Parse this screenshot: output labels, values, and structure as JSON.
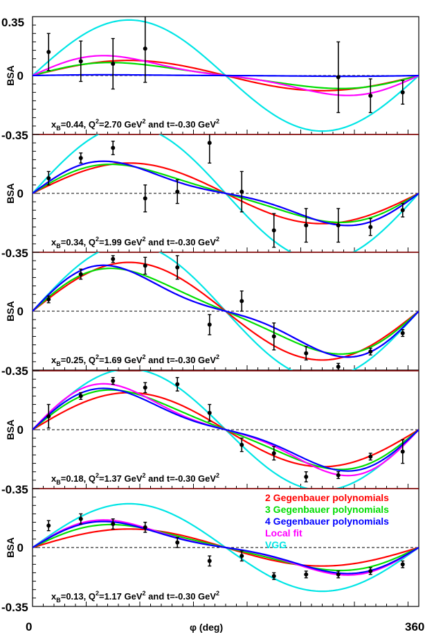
{
  "chart_data": {
    "type": "scatter",
    "x_axis": {
      "label": "φ (deg)",
      "range": [
        0,
        360
      ],
      "tick_labels": [
        "0",
        "360"
      ]
    },
    "y_axis": {
      "label": "BSA",
      "range": [
        -0.35,
        0.35
      ],
      "tick_labels": [
        "0.35",
        "0",
        "-0.35"
      ]
    },
    "legend": {
      "placement": "bottom-panel top-right",
      "entries": [
        {
          "key": "g2",
          "label": "2 Gegenbauer polynomials",
          "color": "#ff0000"
        },
        {
          "key": "g3",
          "label": "3 Gegenbauer polynomials",
          "color": "#00dd00"
        },
        {
          "key": "g4",
          "label": "4 Gegenbauer polynomials",
          "color": "#0000ff"
        },
        {
          "key": "local",
          "label": "Local fit",
          "color": "#ff00ff"
        },
        {
          "key": "vgg",
          "label": "VGG",
          "color": "#00e5e5"
        }
      ]
    },
    "panels": [
      {
        "kin": {
          "xb": "0.44",
          "q2": "2.70",
          "t": "-0.30"
        },
        "amplitudes": {
          "g2": 0.09,
          "g3": 0.085,
          "g4": 0.005,
          "local": 0.13,
          "vgg": 0.33
        },
        "points": [
          {
            "x": 15,
            "y": 0.14,
            "err": 0.11
          },
          {
            "x": 45,
            "y": 0.085,
            "err": 0.12
          },
          {
            "x": 75,
            "y": 0.07,
            "err": 0.15
          },
          {
            "x": 105,
            "y": 0.16,
            "err": 0.2
          },
          {
            "x": 285,
            "y": -0.01,
            "err": 0.21
          },
          {
            "x": 315,
            "y": -0.12,
            "err": 0.1
          },
          {
            "x": 345,
            "y": -0.1,
            "err": 0.07
          }
        ]
      },
      {
        "kin": {
          "xb": "0.34",
          "q2": "1.99",
          "t": "-0.30"
        },
        "amplitudes": {
          "g2": 0.18,
          "g3": 0.19,
          "g4": 0.21,
          "local": 0.21,
          "vgg": 0.4
        },
        "points": [
          {
            "x": 15,
            "y": 0.09,
            "err": 0.04
          },
          {
            "x": 45,
            "y": 0.21,
            "err": 0.03
          },
          {
            "x": 75,
            "y": 0.27,
            "err": 0.04
          },
          {
            "x": 105,
            "y": -0.03,
            "err": 0.08
          },
          {
            "x": 135,
            "y": 0.01,
            "err": 0.07
          },
          {
            "x": 165,
            "y": 0.3,
            "err": 0.12
          },
          {
            "x": 195,
            "y": 0.01,
            "err": 0.12
          },
          {
            "x": 225,
            "y": -0.22,
            "err": 0.1
          },
          {
            "x": 255,
            "y": -0.19,
            "err": 0.1
          },
          {
            "x": 285,
            "y": -0.19,
            "err": 0.1
          },
          {
            "x": 315,
            "y": -0.2,
            "err": 0.05
          },
          {
            "x": 345,
            "y": -0.1,
            "err": 0.04
          }
        ]
      },
      {
        "kin": {
          "xb": "0.25",
          "q2": "1.69",
          "t": "-0.30"
        },
        "amplitudes": {
          "g2": 0.29,
          "g3": 0.28,
          "g4": 0.3,
          "local": 0.3,
          "vgg": 0.4
        },
        "points": [
          {
            "x": 15,
            "y": 0.07,
            "err": 0.02
          },
          {
            "x": 45,
            "y": 0.22,
            "err": 0.03
          },
          {
            "x": 75,
            "y": 0.31,
            "err": 0.02
          },
          {
            "x": 105,
            "y": 0.27,
            "err": 0.05
          },
          {
            "x": 135,
            "y": 0.26,
            "err": 0.07
          },
          {
            "x": 165,
            "y": -0.08,
            "err": 0.06
          },
          {
            "x": 195,
            "y": 0.06,
            "err": 0.06
          },
          {
            "x": 225,
            "y": -0.15,
            "err": 0.08
          },
          {
            "x": 255,
            "y": -0.25,
            "err": 0.04
          },
          {
            "x": 285,
            "y": -0.33,
            "err": 0.02
          },
          {
            "x": 315,
            "y": -0.24,
            "err": 0.02
          },
          {
            "x": 345,
            "y": -0.13,
            "err": 0.02
          }
        ]
      },
      {
        "kin": {
          "xb": "0.18",
          "q2": "1.37",
          "t": "-0.30"
        },
        "amplitudes": {
          "g2": 0.22,
          "g3": 0.26,
          "g4": 0.27,
          "local": 0.3,
          "vgg": 0.36
        },
        "points": [
          {
            "x": 15,
            "y": 0.08,
            "err": 0.07
          },
          {
            "x": 45,
            "y": 0.2,
            "err": 0.02
          },
          {
            "x": 75,
            "y": 0.29,
            "err": 0.02
          },
          {
            "x": 105,
            "y": 0.25,
            "err": 0.03
          },
          {
            "x": 135,
            "y": 0.27,
            "err": 0.04
          },
          {
            "x": 165,
            "y": 0.1,
            "err": 0.05
          },
          {
            "x": 195,
            "y": -0.09,
            "err": 0.04
          },
          {
            "x": 225,
            "y": -0.14,
            "err": 0.04
          },
          {
            "x": 255,
            "y": -0.28,
            "err": 0.03
          },
          {
            "x": 285,
            "y": -0.27,
            "err": 0.02
          },
          {
            "x": 315,
            "y": -0.16,
            "err": 0.02
          },
          {
            "x": 345,
            "y": -0.13,
            "err": 0.07
          }
        ]
      },
      {
        "kin": {
          "xb": "0.13",
          "q2": "1.17",
          "t": "-0.30"
        },
        "amplitudes": {
          "g2": 0.11,
          "g3": 0.15,
          "g4": 0.17,
          "local": 0.18,
          "vgg": 0.26
        },
        "points": [
          {
            "x": 15,
            "y": 0.13,
            "err": 0.03
          },
          {
            "x": 45,
            "y": 0.17,
            "err": 0.03
          },
          {
            "x": 75,
            "y": 0.14,
            "err": 0.03
          },
          {
            "x": 105,
            "y": 0.12,
            "err": 0.03
          },
          {
            "x": 135,
            "y": 0.03,
            "err": 0.03
          },
          {
            "x": 165,
            "y": -0.08,
            "err": 0.03
          },
          {
            "x": 195,
            "y": -0.05,
            "err": 0.03
          },
          {
            "x": 225,
            "y": -0.17,
            "err": 0.02
          },
          {
            "x": 255,
            "y": -0.16,
            "err": 0.02
          },
          {
            "x": 285,
            "y": -0.16,
            "err": 0.02
          },
          {
            "x": 315,
            "y": -0.14,
            "err": 0.02
          },
          {
            "x": 345,
            "y": -0.1,
            "err": 0.02
          }
        ]
      }
    ]
  }
}
